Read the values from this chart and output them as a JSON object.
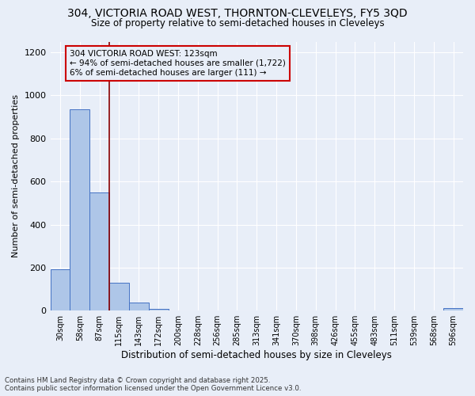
{
  "title_line1": "304, VICTORIA ROAD WEST, THORNTON-CLEVELEYS, FY5 3QD",
  "title_line2": "Size of property relative to semi-detached houses in Cleveleys",
  "xlabel": "Distribution of semi-detached houses by size in Cleveleys",
  "ylabel": "Number of semi-detached properties",
  "categories": [
    "30sqm",
    "58sqm",
    "87sqm",
    "115sqm",
    "143sqm",
    "172sqm",
    "200sqm",
    "228sqm",
    "256sqm",
    "285sqm",
    "313sqm",
    "341sqm",
    "370sqm",
    "398sqm",
    "426sqm",
    "455sqm",
    "483sqm",
    "511sqm",
    "539sqm",
    "568sqm",
    "596sqm"
  ],
  "values": [
    193,
    937,
    548,
    130,
    37,
    8,
    0,
    0,
    0,
    0,
    0,
    0,
    0,
    0,
    0,
    0,
    0,
    0,
    0,
    0,
    10
  ],
  "bar_color": "#aec6e8",
  "bar_edge_color": "#4472c4",
  "background_color": "#e8eef8",
  "grid_color": "#ffffff",
  "vline_color": "#8b0000",
  "vline_bin": 3,
  "annotation_text": "304 VICTORIA ROAD WEST: 123sqm\n← 94% of semi-detached houses are smaller (1,722)\n6% of semi-detached houses are larger (111) →",
  "annotation_box_edge_color": "#cc0000",
  "ylim": [
    0,
    1250
  ],
  "yticks": [
    0,
    200,
    400,
    600,
    800,
    1000,
    1200
  ],
  "footnote_line1": "Contains HM Land Registry data © Crown copyright and database right 2025.",
  "footnote_line2": "Contains public sector information licensed under the Open Government Licence v3.0."
}
